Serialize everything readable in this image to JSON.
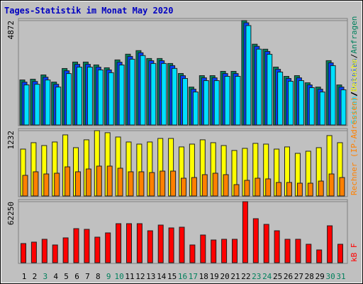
{
  "title": "Tages-Statistik im Monat May 2020",
  "legend_separator": "/",
  "chart_data": [
    {
      "type": "bar",
      "ylim": [
        0,
        4872
      ],
      "yticks": [
        4872
      ],
      "grid": true,
      "series": [
        {
          "name": "Anfragen",
          "color": "#00805c",
          "values": [
            2102,
            2136,
            2336,
            2002,
            2636,
            2937,
            2937,
            2803,
            2670,
            3037,
            3304,
            3471,
            3103,
            3103,
            2870,
            2403,
            1769,
            2303,
            2303,
            2503,
            2503,
            4872,
            3771,
            3537,
            2703,
            2269,
            2303,
            1969,
            1769,
            3003,
            1869
          ]
        },
        {
          "name": "Dateien",
          "color": "#0040ff",
          "values": [
            2000,
            2030,
            2230,
            1900,
            2530,
            2830,
            2830,
            2700,
            2570,
            2930,
            3200,
            3370,
            3000,
            3000,
            2770,
            2300,
            1670,
            2200,
            2200,
            2400,
            2400,
            4770,
            3670,
            3430,
            2600,
            2170,
            2200,
            1870,
            1670,
            2900,
            1770
          ]
        },
        {
          "name": "Seiten",
          "color": "#00e0ff",
          "values": [
            1870,
            1900,
            2100,
            1770,
            2400,
            2700,
            2700,
            2570,
            2440,
            2800,
            3070,
            3240,
            2870,
            2870,
            2640,
            2170,
            1540,
            2070,
            2070,
            2270,
            2270,
            4640,
            3540,
            3300,
            2470,
            2040,
            2070,
            1740,
            1540,
            2770,
            1640
          ]
        }
      ]
    },
    {
      "type": "bar",
      "ylim": [
        0,
        1232
      ],
      "yticks": [
        1232
      ],
      "grid": true,
      "series": [
        {
          "name": "Besuche",
          "color": "#ffff00",
          "values": [
            884,
            1005,
            951,
            1018,
            1152,
            911,
            1059,
            1232,
            1193,
            1112,
            1018,
            978,
            1018,
            1085,
            1085,
            925,
            978,
            1059,
            1005,
            951,
            858,
            898,
            992,
            978,
            884,
            925,
            804,
            844,
            911,
            1139,
            1005
          ]
        },
        {
          "name": "Rechner (IP-Adressen)",
          "color": "#ff8000",
          "values": [
            389,
            456,
            415,
            429,
            549,
            456,
            509,
            563,
            563,
            523,
            456,
            456,
            442,
            469,
            469,
            335,
            348,
            402,
            429,
            402,
            214,
            295,
            335,
            322,
            255,
            255,
            241,
            241,
            281,
            415,
            348
          ]
        }
      ]
    },
    {
      "type": "bar",
      "ylim": [
        0,
        62250
      ],
      "yticks": [
        62250
      ],
      "grid": true,
      "categories": [
        "1",
        "2",
        "3",
        "4",
        "5",
        "6",
        "7",
        "8",
        "9",
        "10",
        "11",
        "12",
        "13",
        "14",
        "15",
        "16",
        "17",
        "18",
        "19",
        "20",
        "21",
        "22",
        "23",
        "24",
        "25",
        "26",
        "27",
        "28",
        "29",
        "30",
        "31"
      ],
      "category_colors": [
        "#000",
        "#000",
        "#00805c",
        "#000",
        "#000",
        "#000",
        "#000",
        "#000",
        "#00805c",
        "#00805c",
        "#000",
        "#000",
        "#000",
        "#000",
        "#000",
        "#00805c",
        "#00805c",
        "#000",
        "#000",
        "#000",
        "#000",
        "#000",
        "#00805c",
        "#00805c",
        "#000",
        "#000",
        "#000",
        "#000",
        "#000",
        "#00805c",
        "#00805c"
      ],
      "series": [
        {
          "name": "kB F",
          "color": "#ff0000",
          "values": [
            19548,
            20996,
            23892,
            18100,
            25340,
            34752,
            34028,
            26064,
            30408,
            39820,
            39820,
            39820,
            32580,
            38372,
            35476,
            36200,
            18100,
            28236,
            23168,
            23892,
            23892,
            62250,
            44888,
            39096,
            32580,
            23892,
            23892,
            18824,
            13032,
            37648,
            18824
          ]
        }
      ]
    }
  ]
}
